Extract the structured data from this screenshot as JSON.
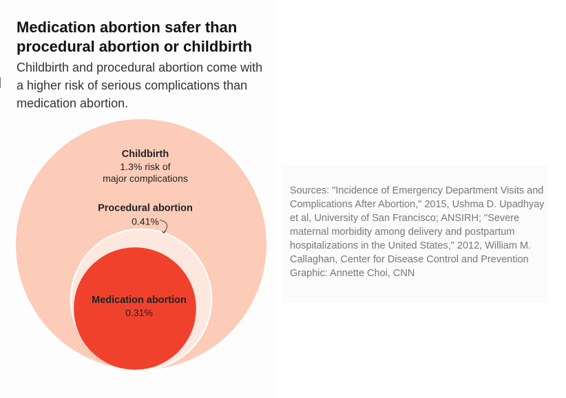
{
  "title": "Medication abortion safer than procedural abortion or childbirth",
  "subtitle": "Childbirth and procedural abortion come with a higher risk of serious complications than medication abortion.",
  "chart_data": {
    "type": "proportional-circles",
    "unit": "% risk of major complications",
    "items": [
      {
        "name": "Childbirth",
        "value": 1.3,
        "label": "1.3% risk of",
        "label2": "major complications",
        "color": "#fcccb8"
      },
      {
        "name": "Procedural abortion",
        "value": 0.41,
        "label": "0.41%",
        "color": "#fde8e0"
      },
      {
        "name": "Medication abortion",
        "value": 0.31,
        "label": "0.31%",
        "color": "#f0412c"
      }
    ]
  },
  "sources": {
    "text": "Sources: \"Incidence of Emergency Department Visits and Complications After Abortion,\" 2015, Ushma D. Upadhyay et al, University of San Francisco; ANSIRH; \"Severe maternal morbidity among delivery and postpartum hospitalizations in the United States,\" 2012, William M. Callaghan, Center for Disease Control and Prevention",
    "credit": "Graphic: Annette Choi, CNN"
  }
}
